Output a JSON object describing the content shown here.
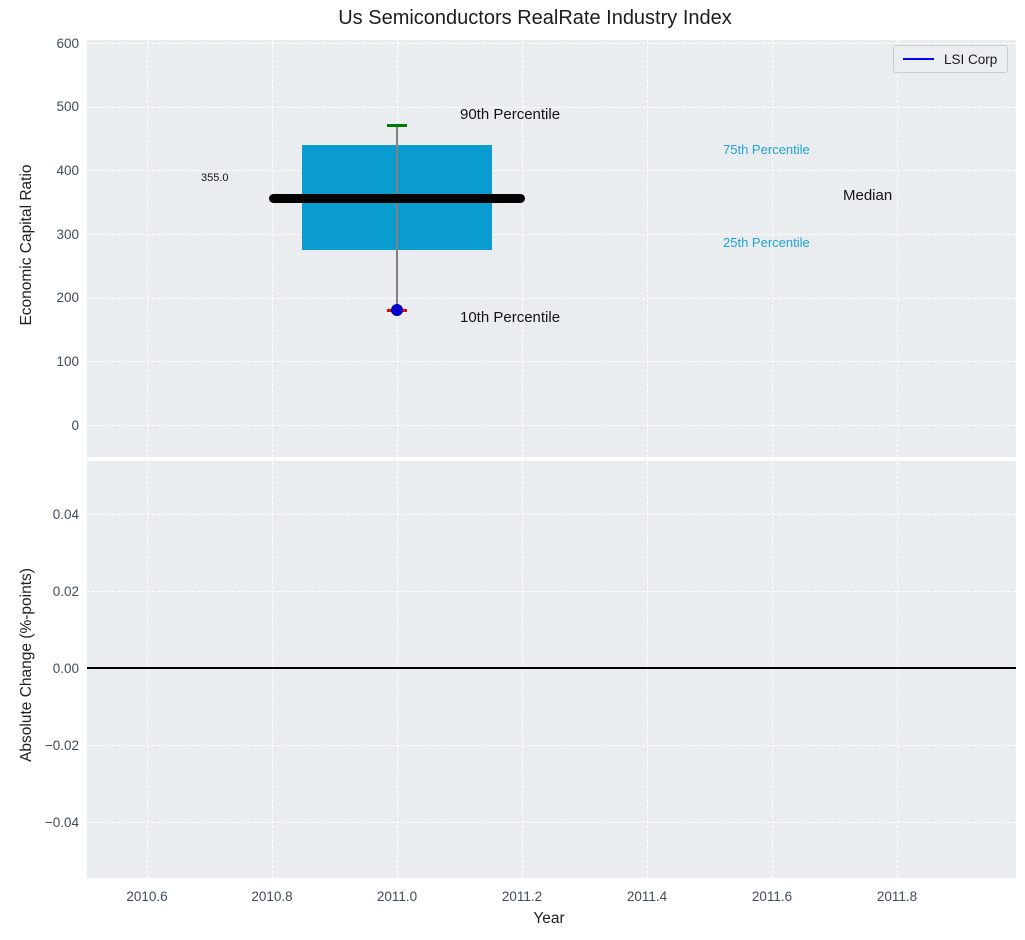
{
  "title": "Us Semiconductors RealRate Industry Index",
  "legend": {
    "label": "LSI Corp",
    "line_color": "#0000ff"
  },
  "top_plot": {
    "ylabel": "Economic Capital Ratio",
    "yticks": [
      "600",
      "500",
      "400",
      "300",
      "200",
      "100",
      "0"
    ],
    "ytick_values": [
      600,
      500,
      400,
      300,
      200,
      100,
      0
    ],
    "annotations": {
      "p90": "90th Percentile",
      "p75": "75th Percentile",
      "median": "Median",
      "p25": "25th Percentile",
      "p10": "10th Percentile",
      "median_value": "355.0"
    }
  },
  "bottom_plot": {
    "ylabel": "Absolute Change (%-points)",
    "yticks": [
      "0.04",
      "0.02",
      "0.00",
      "−0.02",
      "−0.04"
    ],
    "ytick_values": [
      0.04,
      0.02,
      0,
      -0.02,
      -0.04
    ]
  },
  "x_axis": {
    "label": "Year",
    "ticks": [
      "2010.6",
      "2010.8",
      "2011.0",
      "2011.2",
      "2011.4",
      "2011.6",
      "2011.8"
    ],
    "tick_values": [
      2010.6,
      2010.8,
      2011.0,
      2011.2,
      2011.4,
      2011.6,
      2011.8
    ]
  },
  "colors": {
    "box_fill": "#0a9bcf",
    "median_line": "#000000",
    "whisker": "#808080",
    "p90_cap": "#007d00",
    "p10_cap": "#f00000",
    "company_dot": "#0000dd",
    "legend_line": "#0000ff",
    "percentile_text": "#21a2d6",
    "plot_background": "#e9edf0",
    "gridline": "#ffffff",
    "tick_text": "#3e4c60"
  },
  "chart_data": {
    "type": "box",
    "title": "Us Semiconductors RealRate Industry Index",
    "xlabel": "Year",
    "xlim": [
      2010.5,
      2011.99
    ],
    "xticks": [
      2010.6,
      2010.8,
      2011.0,
      2011.2,
      2011.4,
      2011.6,
      2011.8
    ],
    "legend": [
      "LSI Corp"
    ],
    "grid": true,
    "top_panel": {
      "ylabel": "Economic Capital Ratio",
      "ylim": [
        -50,
        605
      ],
      "yticks": [
        0,
        100,
        200,
        300,
        400,
        500,
        600
      ],
      "box": {
        "x": 2011.0,
        "p10": 180,
        "p25": 275,
        "median": 355,
        "p75": 440,
        "p90": 470
      },
      "box_halfwidth": 0.152,
      "median_halfwidth": 0.205,
      "cap_halfwidth": 0.016,
      "company_point": {
        "x": 2011.0,
        "y": 180,
        "label": "LSI Corp"
      },
      "median_annotation": {
        "text": "355.0",
        "x": 2010.72,
        "y": 380
      }
    },
    "bottom_panel": {
      "ylabel": "Absolute Change (%-points)",
      "ylim": [
        -0.0545,
        0.054
      ],
      "yticks": [
        -0.04,
        -0.02,
        0,
        0.02,
        0.04
      ],
      "zero_line_y": 0,
      "series": []
    }
  }
}
